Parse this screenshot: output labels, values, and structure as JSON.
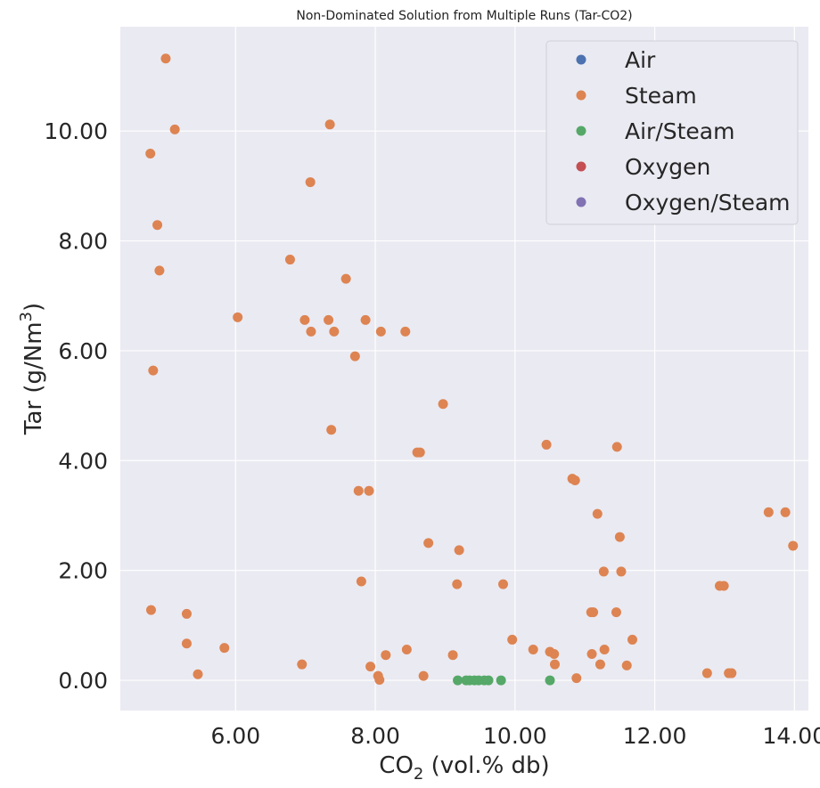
{
  "chart_data": {
    "type": "scatter",
    "title": "Non-Dominated Solution from Multiple Runs (Tar-CO2)",
    "xlabel": {
      "prefix": "CO",
      "subscript": "2",
      "suffix": " (vol.% db)"
    },
    "ylabel": {
      "prefix": "Tar (g/Nm",
      "superscript": "3",
      "suffix": ")"
    },
    "xlim": [
      4.35,
      14.2
    ],
    "ylim": [
      -0.55,
      11.9
    ],
    "xticks": [
      6.0,
      8.0,
      10.0,
      12.0,
      14.0
    ],
    "xtick_labels": [
      "6.00",
      "8.00",
      "10.00",
      "12.00",
      "14.00"
    ],
    "yticks": [
      0.0,
      2.0,
      4.0,
      6.0,
      8.0,
      10.0
    ],
    "ytick_labels": [
      "0.00",
      "2.00",
      "4.00",
      "6.00",
      "8.00",
      "10.00"
    ],
    "grid": true,
    "legend_position": "top-right",
    "series": [
      {
        "name": "Air",
        "color": "#4c72b0",
        "points": []
      },
      {
        "name": "Steam",
        "color": "#dd8452",
        "points": [
          [
            5.0,
            11.32
          ],
          [
            5.13,
            10.03
          ],
          [
            4.78,
            9.59
          ],
          [
            7.35,
            10.12
          ],
          [
            7.07,
            9.07
          ],
          [
            4.88,
            8.29
          ],
          [
            4.91,
            7.46
          ],
          [
            6.78,
            7.66
          ],
          [
            7.58,
            7.31
          ],
          [
            6.03,
            6.61
          ],
          [
            6.99,
            6.56
          ],
          [
            7.33,
            6.56
          ],
          [
            7.86,
            6.56
          ],
          [
            7.08,
            6.35
          ],
          [
            7.41,
            6.35
          ],
          [
            8.08,
            6.35
          ],
          [
            8.43,
            6.35
          ],
          [
            7.71,
            5.9
          ],
          [
            4.82,
            5.64
          ],
          [
            8.97,
            5.03
          ],
          [
            7.37,
            4.56
          ],
          [
            10.45,
            4.29
          ],
          [
            11.46,
            4.25
          ],
          [
            8.6,
            4.15
          ],
          [
            8.64,
            4.15
          ],
          [
            10.82,
            3.67
          ],
          [
            10.86,
            3.64
          ],
          [
            7.76,
            3.45
          ],
          [
            7.91,
            3.45
          ],
          [
            11.18,
            3.03
          ],
          [
            13.63,
            3.06
          ],
          [
            13.87,
            3.06
          ],
          [
            13.98,
            2.45
          ],
          [
            11.5,
            2.61
          ],
          [
            8.76,
            2.5
          ],
          [
            9.2,
            2.37
          ],
          [
            11.27,
            1.98
          ],
          [
            11.52,
            1.98
          ],
          [
            7.8,
            1.8
          ],
          [
            9.17,
            1.75
          ],
          [
            9.83,
            1.75
          ],
          [
            12.93,
            1.72
          ],
          [
            12.99,
            1.72
          ],
          [
            4.79,
            1.28
          ],
          [
            5.3,
            1.21
          ],
          [
            11.09,
            1.24
          ],
          [
            11.12,
            1.24
          ],
          [
            11.45,
            1.24
          ],
          [
            9.96,
            0.74
          ],
          [
            11.68,
            0.74
          ],
          [
            5.3,
            0.67
          ],
          [
            5.84,
            0.59
          ],
          [
            10.26,
            0.56
          ],
          [
            11.28,
            0.56
          ],
          [
            8.45,
            0.56
          ],
          [
            10.5,
            0.52
          ],
          [
            10.56,
            0.48
          ],
          [
            8.15,
            0.46
          ],
          [
            9.11,
            0.46
          ],
          [
            11.1,
            0.48
          ],
          [
            6.95,
            0.29
          ],
          [
            7.93,
            0.25
          ],
          [
            10.57,
            0.29
          ],
          [
            11.22,
            0.29
          ],
          [
            11.6,
            0.27
          ],
          [
            5.46,
            0.11
          ],
          [
            8.04,
            0.08
          ],
          [
            8.06,
            0.01
          ],
          [
            8.69,
            0.08
          ],
          [
            10.88,
            0.04
          ],
          [
            12.75,
            0.13
          ],
          [
            13.06,
            0.13
          ],
          [
            13.1,
            0.13
          ]
        ]
      },
      {
        "name": "Air/Steam",
        "color": "#55a868",
        "points": [
          [
            9.18,
            0.0
          ],
          [
            9.3,
            0.0
          ],
          [
            9.35,
            0.0
          ],
          [
            9.42,
            0.0
          ],
          [
            9.48,
            0.0
          ],
          [
            9.56,
            0.0
          ],
          [
            9.62,
            0.0
          ],
          [
            9.8,
            0.0
          ],
          [
            10.5,
            0.0
          ]
        ]
      },
      {
        "name": "Oxygen",
        "color": "#c44e52",
        "points": []
      },
      {
        "name": "Oxygen/Steam",
        "color": "#8172b3",
        "points": []
      }
    ]
  }
}
